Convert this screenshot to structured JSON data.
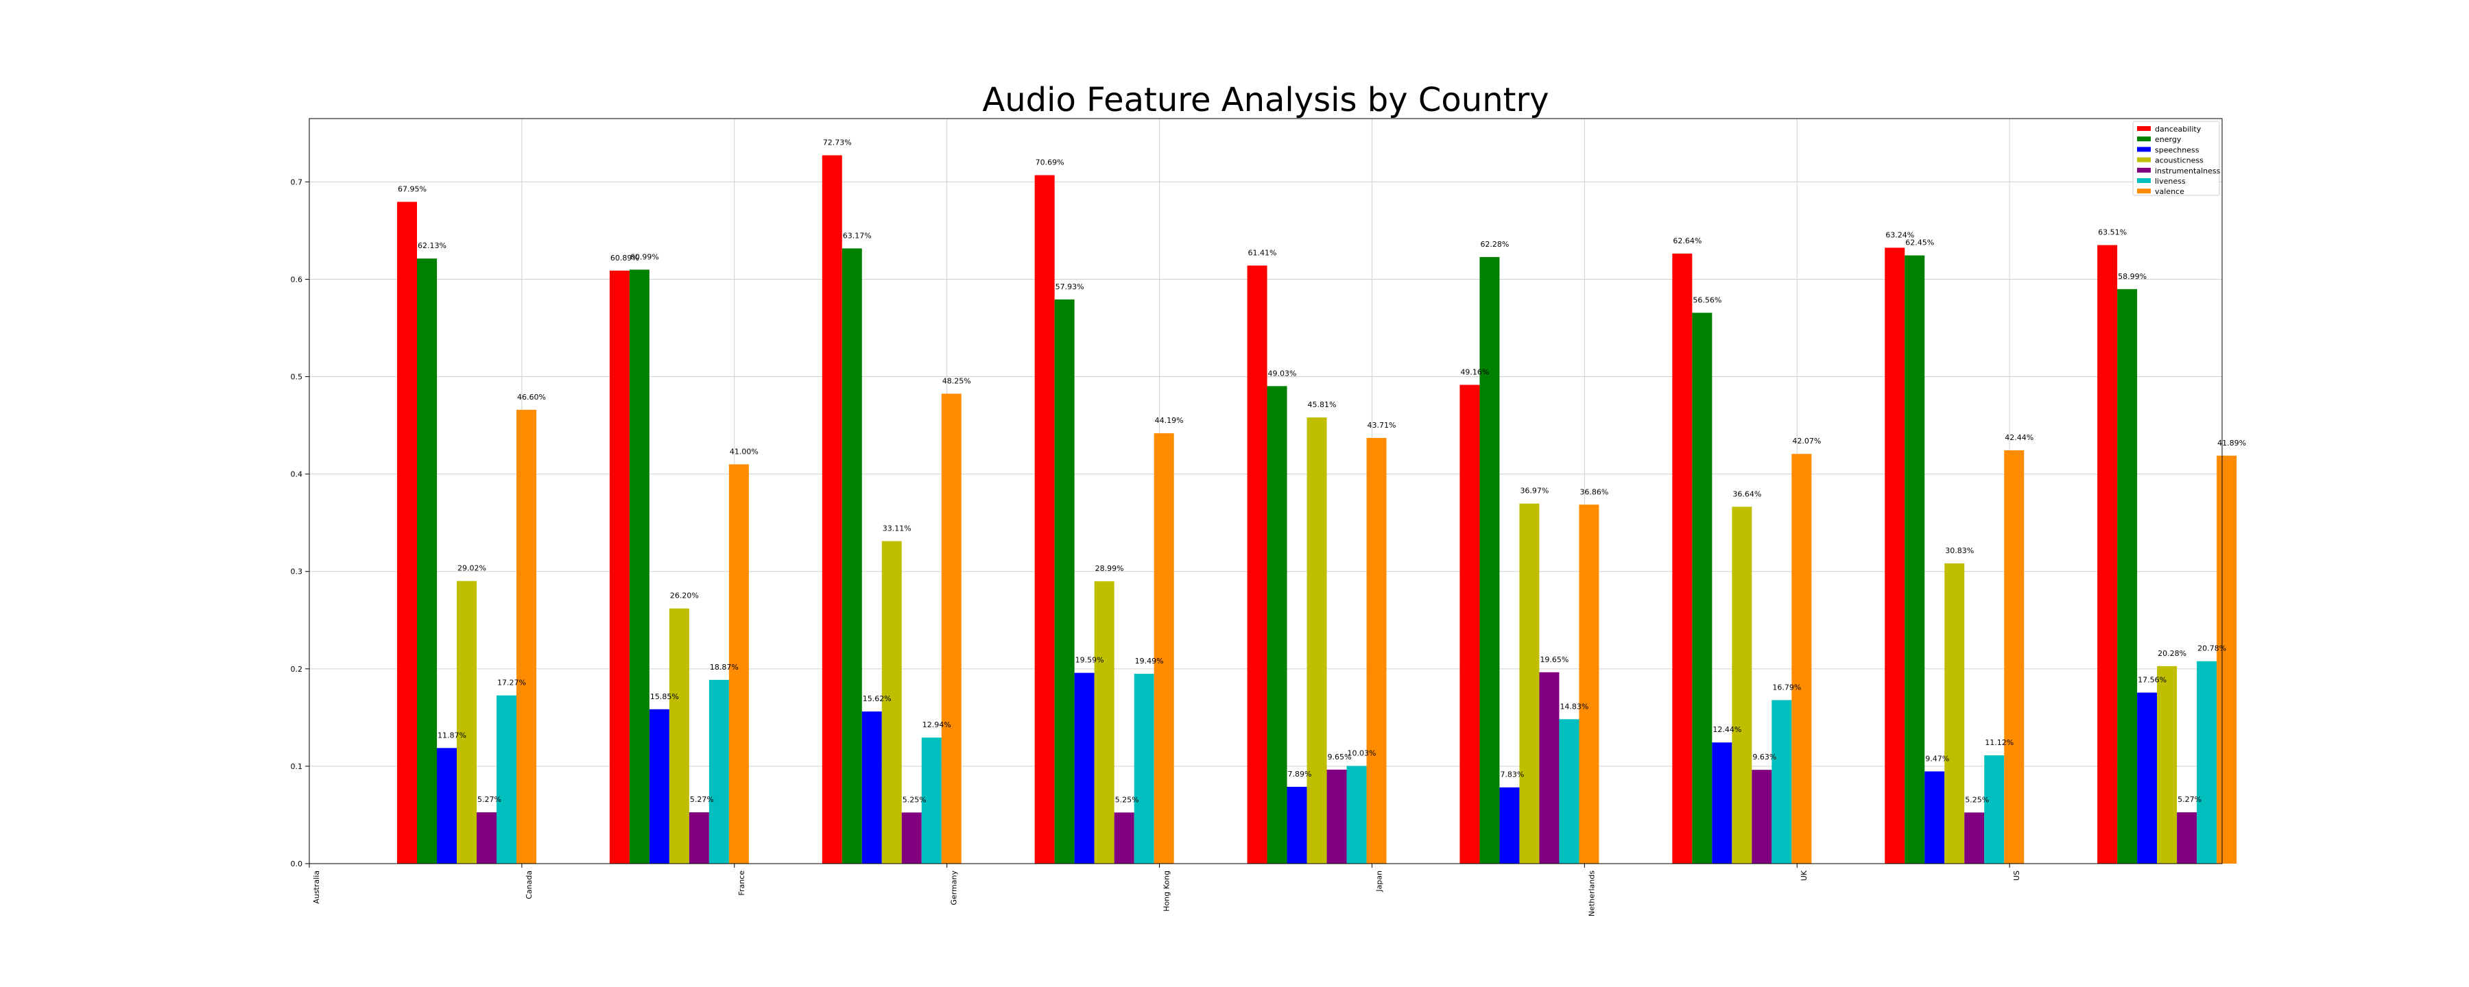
{
  "chart_data": {
    "type": "bar",
    "title": "Audio Feature Analysis by Country",
    "xlabel": "",
    "ylabel": "",
    "ylim": [
      0,
      0.765
    ],
    "yticks": [
      0.0,
      0.1,
      0.2,
      0.3,
      0.4,
      0.5,
      0.6,
      0.7
    ],
    "grid": true,
    "legend_position": "top-right",
    "categories": [
      "Australia",
      "Canada",
      "France",
      "Germany",
      "Hong Kong",
      "Japan",
      "Netherlands",
      "UK",
      "US"
    ],
    "series": [
      {
        "name": "danceability",
        "color": "#ff0000",
        "values": [
          0.6795,
          0.6089,
          0.7273,
          0.7069,
          0.6141,
          0.4916,
          0.6264,
          0.6324,
          0.6351
        ],
        "labels": [
          "67.95%",
          "60.89%",
          "72.73%",
          "70.69%",
          "61.41%",
          "49.16%",
          "62.64%",
          "63.24%",
          "63.51%"
        ]
      },
      {
        "name": "energy",
        "color": "#008000",
        "values": [
          0.6213,
          0.6099,
          0.6317,
          0.5793,
          0.4903,
          0.6228,
          0.5656,
          0.6245,
          0.5899
        ],
        "labels": [
          "62.13%",
          "60.99%",
          "63.17%",
          "57.93%",
          "49.03%",
          "62.28%",
          "56.56%",
          "62.45%",
          "58.99%"
        ]
      },
      {
        "name": "speechness",
        "color": "#0000ff",
        "values": [
          0.1187,
          0.1585,
          0.1562,
          0.1959,
          0.0789,
          0.0783,
          0.1244,
          0.0947,
          0.1756
        ],
        "labels": [
          "11.87%",
          "15.85%",
          "15.62%",
          "19.59%",
          "7.89%",
          "7.83%",
          "12.44%",
          "9.47%",
          "17.56%"
        ]
      },
      {
        "name": "acousticness",
        "color": "#bfbf00",
        "values": [
          0.2902,
          0.262,
          0.3311,
          0.2899,
          0.4581,
          0.3697,
          0.3664,
          0.3083,
          0.2028
        ],
        "labels": [
          "29.02%",
          "26.20%",
          "33.11%",
          "28.99%",
          "45.81%",
          "36.97%",
          "36.64%",
          "30.83%",
          "20.28%"
        ]
      },
      {
        "name": "instrumentalness",
        "color": "#800080",
        "values": [
          0.0527,
          0.0527,
          0.0525,
          0.0525,
          0.0965,
          0.1965,
          0.0963,
          0.0525,
          0.0527
        ],
        "labels": [
          "5.27%",
          "5.27%",
          "5.25%",
          "5.25%",
          "9.65%",
          "19.65%",
          "9.63%",
          "5.25%",
          "5.27%"
        ]
      },
      {
        "name": "liveness",
        "color": "#00bfbf",
        "values": [
          0.1727,
          0.1887,
          0.1294,
          0.1949,
          0.1003,
          0.1483,
          0.1679,
          0.1112,
          0.2078
        ],
        "labels": [
          "17.27%",
          "18.87%",
          "12.94%",
          "19.49%",
          "10.03%",
          "14.83%",
          "16.79%",
          "11.12%",
          "20.78%"
        ]
      },
      {
        "name": "valence",
        "color": "#ff8c00",
        "values": [
          0.466,
          0.41,
          0.4825,
          0.4419,
          0.4371,
          0.3686,
          0.4207,
          0.4244,
          0.4189
        ],
        "labels": [
          "46.60%",
          "41.00%",
          "48.25%",
          "44.19%",
          "43.71%",
          "36.86%",
          "42.07%",
          "42.44%",
          "41.89%"
        ]
      }
    ]
  }
}
